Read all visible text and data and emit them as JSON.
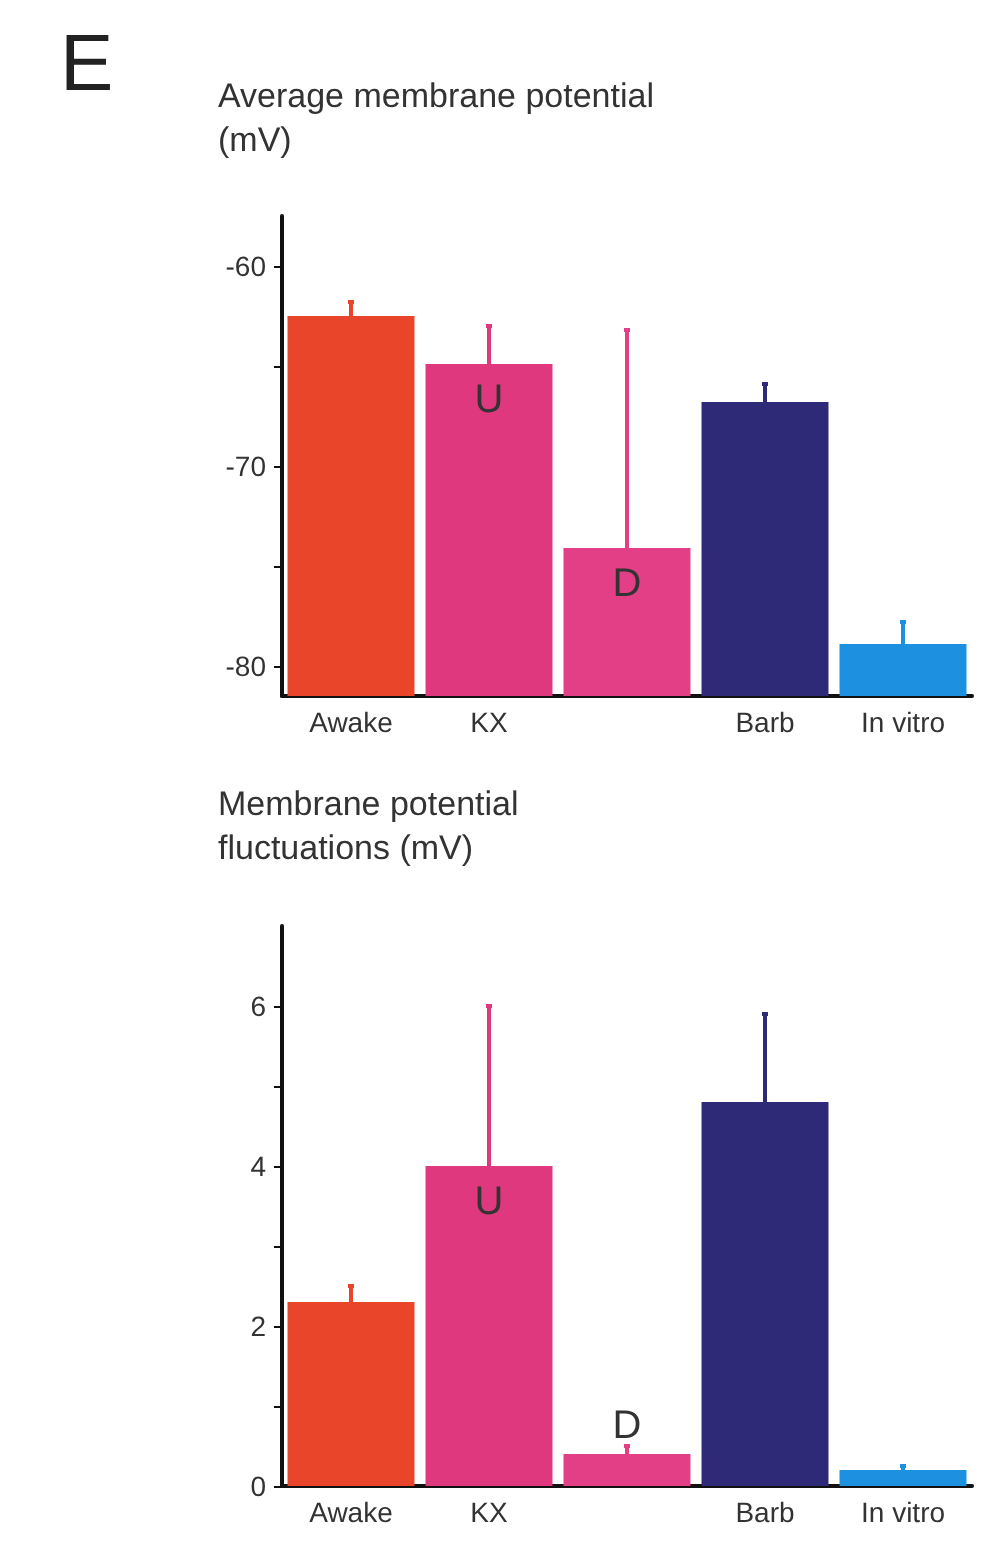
{
  "chart_data": [
    {
      "type": "bar",
      "title": "Average membrane potential (mV)",
      "annotations": [
        "E",
        "U",
        "D"
      ],
      "categories": [
        "Awake",
        "KX",
        null,
        "Barb",
        "In vitro"
      ],
      "values": [
        19,
        16.6,
        7.4,
        14.7,
        2.6
      ],
      "base": [
        -81.5,
        -81.5,
        -81.5,
        -81.5,
        -81.5
      ],
      "colors": [
        "#e8452a",
        "#e0387f",
        "#e23f86",
        "#2e2a78",
        "#1e90e0"
      ],
      "errors": [
        [
          -62.5,
          -61.8
        ],
        [
          -64.9,
          -63
        ],
        [
          -74.1,
          -63.2
        ],
        [
          -66.8,
          -65.9
        ],
        [
          -78.9,
          -77.8
        ]
      ],
      "ylim": [
        -81.5,
        -57.5
      ],
      "yticks": [
        -80,
        {
          "value": -75,
          "label": null
        },
        -70,
        {
          "value": -65,
          "label": null
        },
        -60
      ]
    },
    {
      "type": "bar",
      "title": "Membrane potential fluctuations (mV)",
      "annotations": [
        "U",
        "D"
      ],
      "categories": [
        "Awake",
        "KX",
        null,
        "Barb",
        "In vitro"
      ],
      "values": [
        2.3,
        4.0,
        0.4,
        4.8,
        0.2
      ],
      "colors": [
        "#e8452a",
        "#e0387f",
        "#e23f86",
        "#2e2a78",
        "#1e90e0"
      ],
      "errors": [
        [
          2.3,
          2.5
        ],
        [
          4.0,
          6.0
        ],
        [
          0.4,
          0.5
        ],
        [
          4.8,
          5.9
        ],
        [
          0.2,
          0.25
        ]
      ],
      "ylim": [
        0,
        7
      ],
      "yticks": [
        0,
        {
          "value": 1,
          "label": null
        },
        2,
        {
          "value": 3,
          "label": null
        },
        4,
        {
          "value": 5,
          "label": null
        },
        6
      ]
    }
  ]
}
